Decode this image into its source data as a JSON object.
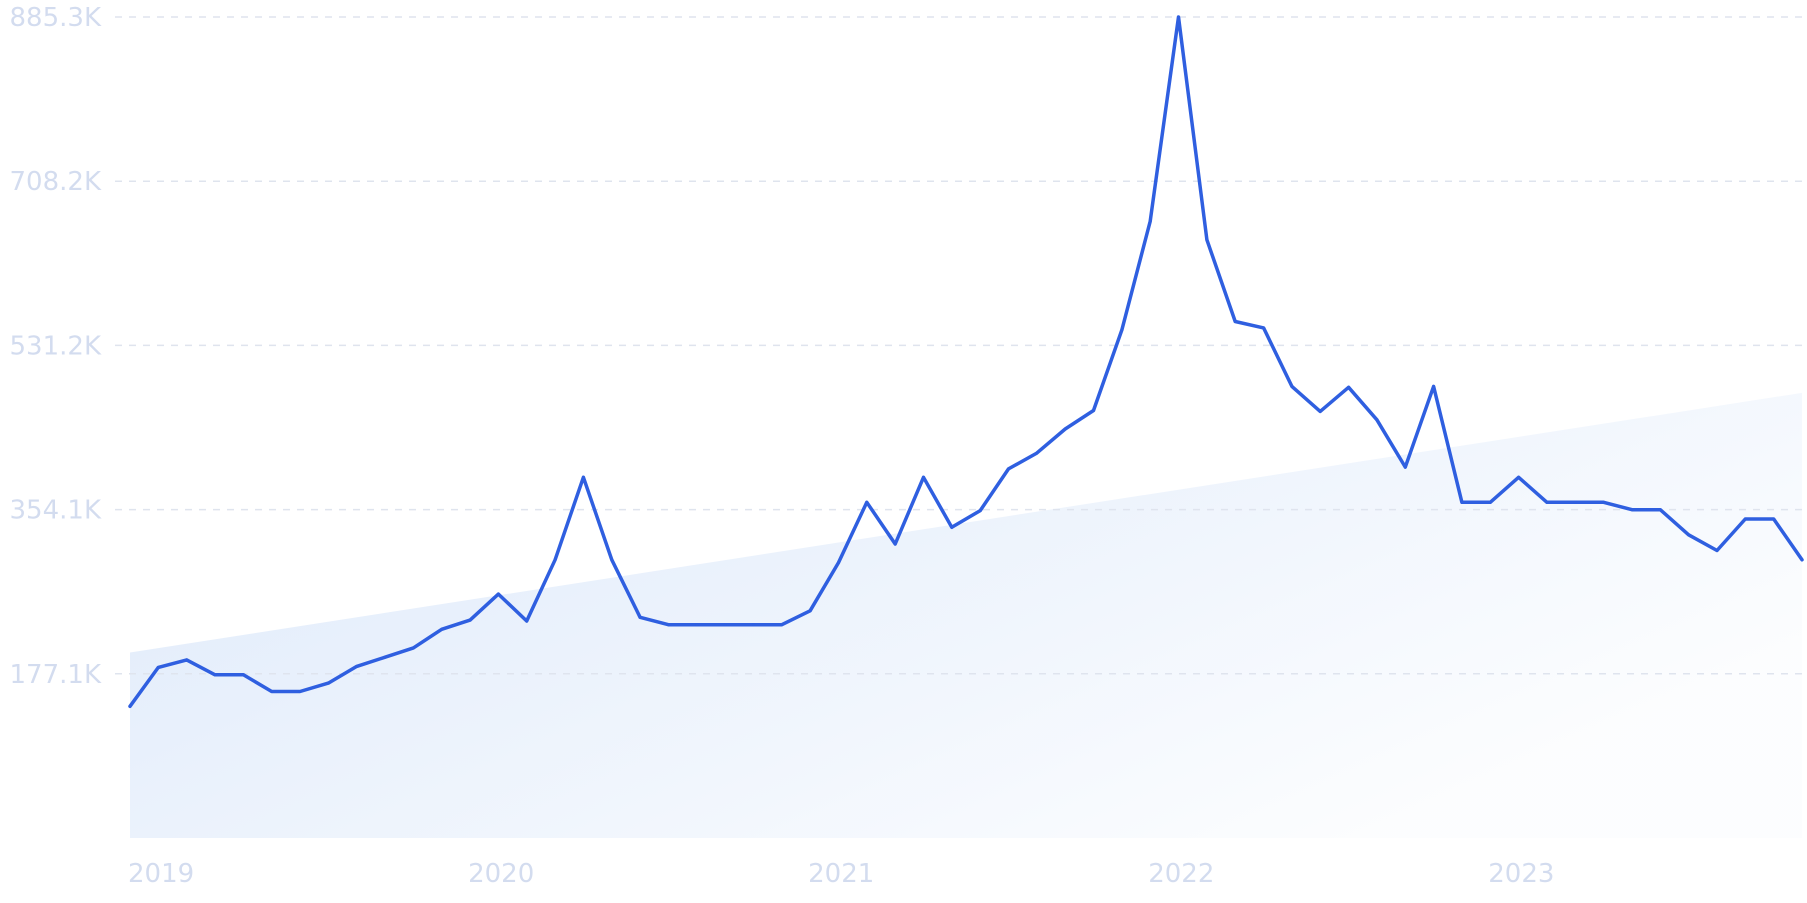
{
  "chart_data": {
    "type": "line",
    "title": "",
    "xlabel": "",
    "ylabel": "",
    "x_range": [
      "2019-01",
      "2023-12"
    ],
    "ylim": [
      0,
      885300
    ],
    "grid": {
      "horizontal": true,
      "vertical": false,
      "style": "dashed"
    },
    "y_ticks": [
      {
        "value": 177100,
        "label": "177.1K"
      },
      {
        "value": 354100,
        "label": "354.1K"
      },
      {
        "value": 531200,
        "label": "531.2K"
      },
      {
        "value": 708200,
        "label": "708.2K"
      },
      {
        "value": 885300,
        "label": "885.3K"
      }
    ],
    "x_ticks": [
      {
        "value": "2019-01",
        "label": "2019"
      },
      {
        "value": "2020-01",
        "label": "2020"
      },
      {
        "value": "2021-01",
        "label": "2021"
      },
      {
        "value": "2022-01",
        "label": "2022"
      },
      {
        "value": "2023-01",
        "label": "2023"
      }
    ],
    "series": [
      {
        "color": "#2f5fe0",
        "points": [
          [
            "2019-01",
            142000
          ],
          [
            "2019-02",
            184000
          ],
          [
            "2019-03",
            192000
          ],
          [
            "2019-04",
            176000
          ],
          [
            "2019-05",
            176000
          ],
          [
            "2019-06",
            158000
          ],
          [
            "2019-07",
            158000
          ],
          [
            "2019-08",
            167000
          ],
          [
            "2019-09",
            185000
          ],
          [
            "2019-10",
            195000
          ],
          [
            "2019-11",
            205000
          ],
          [
            "2019-12",
            225000
          ],
          [
            "2020-01",
            235000
          ],
          [
            "2020-02",
            263000
          ],
          [
            "2020-03",
            234000
          ],
          [
            "2020-04",
            300000
          ],
          [
            "2020-05",
            389000
          ],
          [
            "2020-06",
            300000
          ],
          [
            "2020-07",
            238000
          ],
          [
            "2020-08",
            230000
          ],
          [
            "2020-09",
            230000
          ],
          [
            "2020-10",
            230000
          ],
          [
            "2020-11",
            230000
          ],
          [
            "2020-12",
            230000
          ],
          [
            "2021-01",
            245000
          ],
          [
            "2021-02",
            297000
          ],
          [
            "2021-03",
            362000
          ],
          [
            "2021-04",
            317000
          ],
          [
            "2021-05",
            389000
          ],
          [
            "2021-06",
            335000
          ],
          [
            "2021-07",
            353000
          ],
          [
            "2021-08",
            398000
          ],
          [
            "2021-09",
            415000
          ],
          [
            "2021-10",
            441000
          ],
          [
            "2021-11",
            461000
          ],
          [
            "2021-12",
            548000
          ],
          [
            "2022-01",
            665000
          ],
          [
            "2022-02",
            885300
          ],
          [
            "2022-03",
            645000
          ],
          [
            "2022-04",
            557000
          ],
          [
            "2022-05",
            550000
          ],
          [
            "2022-06",
            487000
          ],
          [
            "2022-07",
            460000
          ],
          [
            "2022-08",
            486000
          ],
          [
            "2022-09",
            451000
          ],
          [
            "2022-10",
            400000
          ],
          [
            "2022-11",
            487000
          ],
          [
            "2022-12",
            362000
          ],
          [
            "2023-01",
            362000
          ],
          [
            "2023-02",
            389000
          ],
          [
            "2023-03",
            362000
          ],
          [
            "2023-04",
            362000
          ],
          [
            "2023-05",
            362000
          ],
          [
            "2023-06",
            354000
          ],
          [
            "2023-07",
            354000
          ],
          [
            "2023-08",
            327000
          ],
          [
            "2023-09",
            310000
          ],
          [
            "2023-10",
            344000
          ],
          [
            "2023-11",
            344000
          ],
          [
            "2023-12",
            300000
          ]
        ]
      }
    ],
    "trend_area": {
      "start": [
        "2019-01",
        200000
      ],
      "end": [
        "2023-12",
        480000
      ],
      "color": "#dce8fa"
    }
  }
}
